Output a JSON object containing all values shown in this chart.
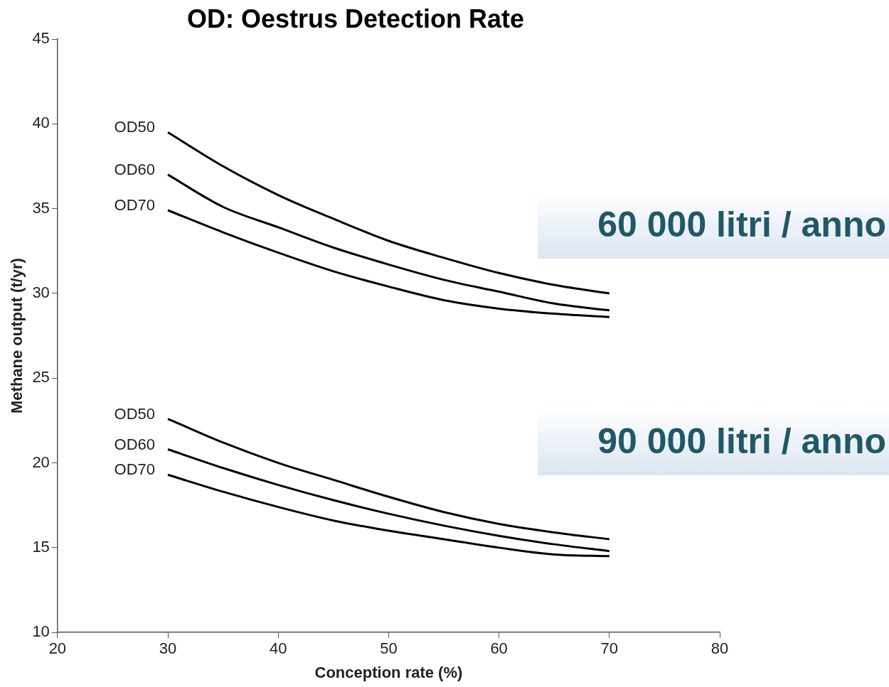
{
  "chart_data": {
    "type": "line",
    "title": "OD: Oestrus Detection Rate",
    "xlabel": "Conception rate (%)",
    "ylabel": "Methane output (t/yr)",
    "x": [
      30,
      35,
      40,
      45,
      50,
      55,
      60,
      65,
      70
    ],
    "xlim": [
      20,
      80
    ],
    "xticks": [
      20,
      30,
      40,
      50,
      60,
      70,
      80
    ],
    "ylim": [
      10,
      45
    ],
    "yticks": [
      10,
      15,
      20,
      25,
      30,
      35,
      40,
      45
    ],
    "grid": false,
    "legend": false,
    "marker": "none",
    "line_style": "solid",
    "series": [
      {
        "name": "OD50",
        "color": "#000000",
        "values": [
          39.5,
          37.5,
          35.8,
          34.4,
          33.1,
          32.1,
          31.2,
          30.5,
          30.0
        ]
      },
      {
        "name": "OD60",
        "color": "#000000",
        "values": [
          37.0,
          35.1,
          33.9,
          32.7,
          31.7,
          30.8,
          30.1,
          29.4,
          29.0
        ]
      },
      {
        "name": "OD70",
        "color": "#000000",
        "values": [
          34.9,
          33.6,
          32.4,
          31.3,
          30.4,
          29.6,
          29.1,
          28.8,
          28.6
        ]
      },
      {
        "name": "OD50",
        "color": "#000000",
        "values": [
          22.6,
          21.2,
          20.0,
          19.0,
          18.0,
          17.1,
          16.4,
          15.9,
          15.5
        ]
      },
      {
        "name": "OD60",
        "color": "#000000",
        "values": [
          20.8,
          19.7,
          18.7,
          17.8,
          17.0,
          16.3,
          15.7,
          15.2,
          14.8
        ]
      },
      {
        "name": "OD70",
        "color": "#000000",
        "values": [
          19.3,
          18.3,
          17.4,
          16.6,
          16.0,
          15.5,
          15.0,
          14.6,
          14.5
        ]
      }
    ],
    "annotations": [
      "60 000 litri / anno",
      "90 000 litri / anno"
    ]
  }
}
